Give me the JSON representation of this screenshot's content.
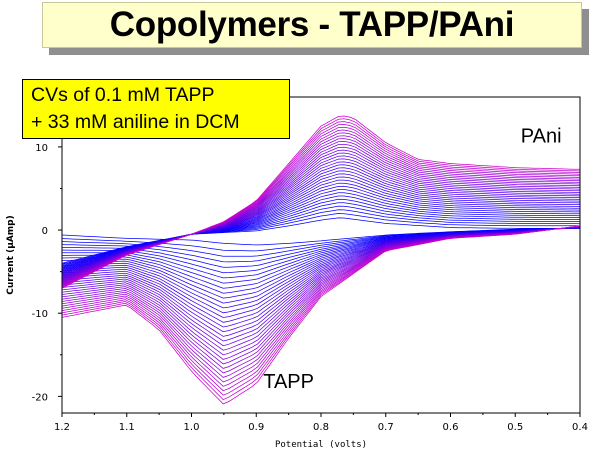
{
  "title": "Copolymers - TAPP/PAni",
  "note": {
    "line1": "CVs of 0.1 mM TAPP",
    "line2": "+ 33 mM aniline in DCM"
  },
  "colors": {
    "title_bg": "#ffffcc",
    "note_bg": "#ffff00",
    "early_scan": "#0000ff",
    "late_scan": "#cc00cc"
  },
  "chart_data": {
    "type": "line",
    "xlabel": "Potential (volts)",
    "ylabel": "Current (µAmp)",
    "xlim": [
      1.2,
      0.4
    ],
    "x_reversed": true,
    "ylim": [
      -22,
      16
    ],
    "x_ticks": [
      "1.2",
      "1.1",
      "1.0",
      "0.9",
      "0.8",
      "0.7",
      "0.6",
      "0.5",
      "0.4"
    ],
    "y_ticks": [
      "10",
      "0",
      "-10",
      "-20"
    ],
    "grid": false,
    "scan_count": 34,
    "annotations": [
      {
        "text": "PAni",
        "x": 0.46,
        "y": 10.5
      },
      {
        "text": "TAPP",
        "x": 0.85,
        "y": -19
      }
    ],
    "first_scan": {
      "oxidation_x": [
        1.2,
        1.1,
        1.0,
        0.95,
        0.9,
        0.85,
        0.8,
        0.77,
        0.75,
        0.7,
        0.6,
        0.5,
        0.4
      ],
      "oxidation_y": [
        -4,
        -2,
        -0.5,
        -0.3,
        -0.1,
        0.5,
        1.2,
        1.5,
        1.3,
        0.8,
        0.3,
        0.2,
        0.2
      ],
      "reduction_x": [
        0.4,
        0.5,
        0.6,
        0.7,
        0.8,
        0.85,
        0.9,
        0.95,
        1.0,
        1.1,
        1.2
      ],
      "reduction_y": [
        0.2,
        0.1,
        -0.2,
        -0.6,
        -1.3,
        -1.6,
        -1.8,
        -1.6,
        -1.2,
        -1.0,
        -0.6
      ]
    },
    "last_scan": {
      "oxidation_x": [
        1.2,
        1.1,
        1.0,
        0.95,
        0.9,
        0.85,
        0.8,
        0.77,
        0.75,
        0.7,
        0.65,
        0.6,
        0.5,
        0.4
      ],
      "oxidation_y": [
        -7,
        -3,
        -0.5,
        1,
        3.5,
        8,
        12.5,
        13.8,
        13.5,
        10.5,
        8.5,
        8,
        7.5,
        7.3
      ],
      "reduction_x": [
        0.4,
        0.5,
        0.6,
        0.7,
        0.8,
        0.85,
        0.9,
        0.95,
        1.0,
        1.05,
        1.1,
        1.2
      ],
      "reduction_y": [
        0.5,
        -0.5,
        -1,
        -2.5,
        -8,
        -13,
        -18.5,
        -21,
        -17,
        -12,
        -9,
        -10.5
      ]
    }
  }
}
